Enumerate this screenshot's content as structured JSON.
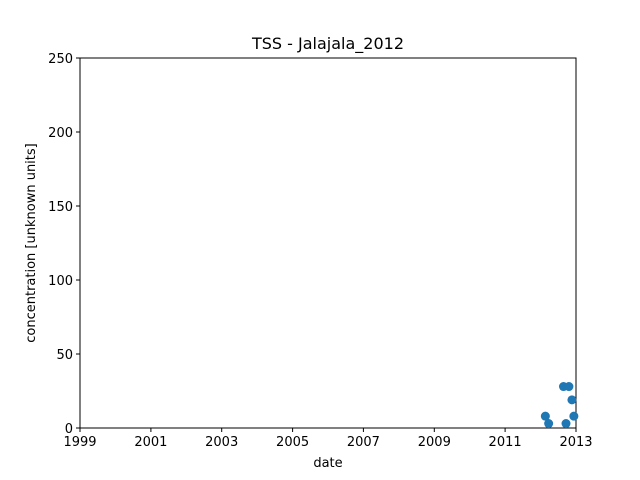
{
  "chart_data": {
    "type": "scatter",
    "title": "TSS - Jalajala_2012",
    "xlabel": "date",
    "ylabel": "concentration [unknown units]",
    "xlim": [
      "1999-01-01",
      "2013-01-01"
    ],
    "ylim": [
      0,
      250
    ],
    "x_ticks": [
      "1999",
      "2001",
      "2003",
      "2005",
      "2007",
      "2009",
      "2011",
      "2013"
    ],
    "y_ticks": [
      0,
      50,
      100,
      150,
      200,
      250
    ],
    "grid": false,
    "marker_color": "#1f77b4",
    "series": [
      {
        "points": [
          {
            "x": "2012-02-20",
            "y": 8
          },
          {
            "x": "2012-03-25",
            "y": 3
          },
          {
            "x": "2012-08-25",
            "y": 28
          },
          {
            "x": "2012-09-20",
            "y": 3
          },
          {
            "x": "2012-10-20",
            "y": 28
          },
          {
            "x": "2012-11-20",
            "y": 19
          },
          {
            "x": "2012-12-10",
            "y": 8
          }
        ]
      }
    ]
  }
}
